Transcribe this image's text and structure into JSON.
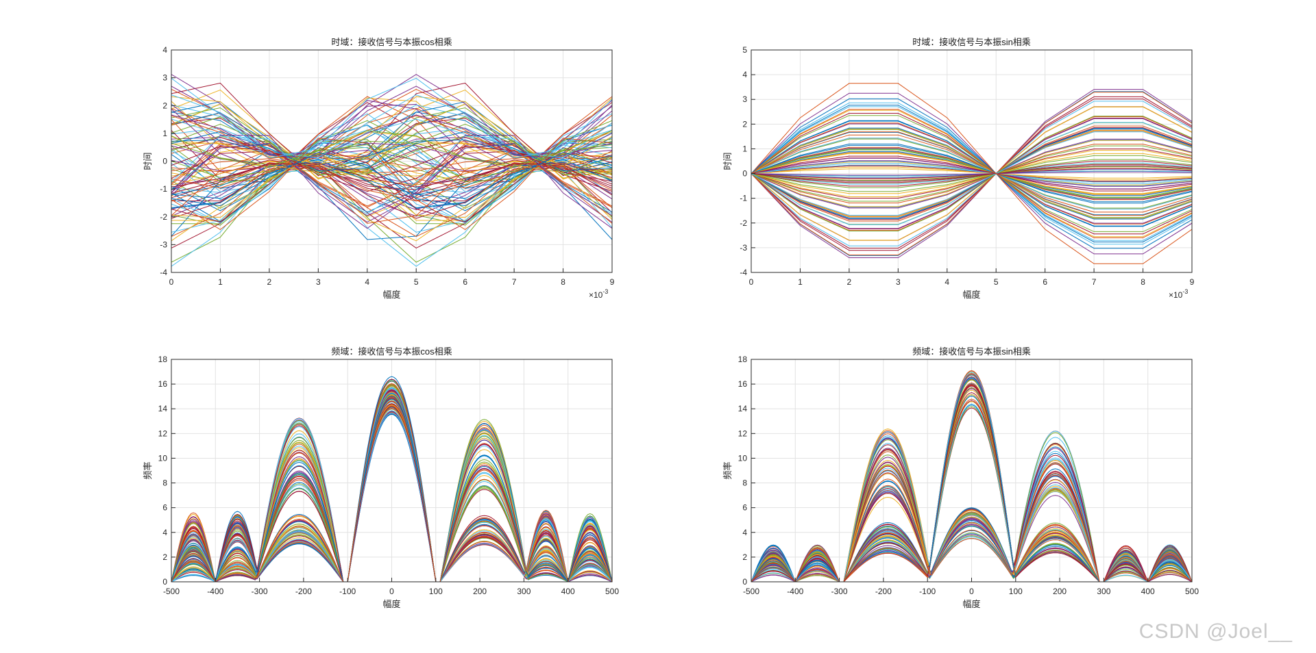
{
  "watermark": "CSDN @Joel__",
  "colors": [
    "#0072BD",
    "#D95319",
    "#EDB120",
    "#7E2F8E",
    "#77AC30",
    "#4DBEEE",
    "#A2142F"
  ],
  "chart_data": [
    {
      "id": "td-cos",
      "type": "line",
      "title": "时域：接收信号与本振cos相乘",
      "xlabel": "幅度",
      "ylabel": "时间",
      "xlim": [
        0,
        9
      ],
      "ylim": [
        -4,
        4
      ],
      "xticks": [
        0,
        1,
        2,
        3,
        4,
        5,
        6,
        7,
        8,
        9
      ],
      "yticks": [
        -4,
        -3,
        -2,
        -1,
        0,
        1,
        2,
        3,
        4
      ],
      "x_exponent": "-3",
      "grid": true,
      "x": [
        0,
        1,
        2,
        3,
        4,
        5,
        6,
        7,
        8,
        9
      ],
      "series_count": 100,
      "amplitude_range": [
        0.5,
        3.8
      ],
      "description": "100 sampled sinusoid traces; zero crossings near x = 2.5 and x = 7.5"
    },
    {
      "id": "td-sin",
      "type": "line",
      "title": "时域：接收信号与本振sin相乘",
      "xlabel": "幅度",
      "ylabel": "时间",
      "xlim": [
        0,
        9
      ],
      "ylim": [
        -4,
        5
      ],
      "xticks": [
        0,
        1,
        2,
        3,
        4,
        5,
        6,
        7,
        8,
        9
      ],
      "yticks": [
        -4,
        -3,
        -2,
        -1,
        0,
        1,
        2,
        3,
        4,
        5
      ],
      "x_exponent": "-3",
      "grid": true,
      "x": [
        0,
        1,
        2,
        3,
        4,
        5,
        6,
        7,
        8,
        9
      ],
      "series_count": 100,
      "amplitude_range": [
        0.5,
        4.0
      ],
      "description": "100 sampled traces all passing through 0 at x = 0 and x = 5"
    },
    {
      "id": "fd-cos",
      "type": "line",
      "title": "频域：接收信号与本振cos相乘",
      "xlabel": "幅度",
      "ylabel": "频率",
      "xlim": [
        -500,
        500
      ],
      "ylim": [
        0,
        18
      ],
      "xticks": [
        -500,
        -400,
        -300,
        -200,
        -100,
        0,
        100,
        200,
        300,
        400,
        500
      ],
      "yticks": [
        0,
        2,
        4,
        6,
        8,
        10,
        12,
        14,
        16,
        18
      ],
      "grid": true,
      "series_count": 100,
      "main_lobe": {
        "center": 0,
        "peak_range": [
          13.5,
          16.7
        ]
      },
      "side_lobes": [
        {
          "center": -210,
          "peak_range": [
            3.0,
            13.3
          ]
        },
        {
          "center": 210,
          "peak_range": [
            3.0,
            13.3
          ]
        },
        {
          "center": -350,
          "peak_range": [
            0.5,
            5.8
          ]
        },
        {
          "center": 350,
          "peak_range": [
            0.5,
            5.8
          ]
        },
        {
          "center": -450,
          "peak_range": [
            0.5,
            5.6
          ]
        },
        {
          "center": 450,
          "peak_range": [
            0.5,
            5.6
          ]
        }
      ],
      "nulls": [
        -300,
        -100,
        100,
        300
      ]
    },
    {
      "id": "fd-sin",
      "type": "line",
      "title": "频域：接收信号与本振sin相乘",
      "xlabel": "幅度",
      "ylabel": "频率",
      "xlim": [
        -500,
        500
      ],
      "ylim": [
        0,
        18
      ],
      "xticks": [
        -500,
        -400,
        -300,
        -200,
        -100,
        0,
        100,
        200,
        300,
        400,
        500
      ],
      "yticks": [
        0,
        2,
        4,
        6,
        8,
        10,
        12,
        14,
        16,
        18
      ],
      "grid": true,
      "series_count": 100,
      "main_lobe": {
        "center": 0,
        "peak_range": [
          3.5,
          17.1
        ]
      },
      "side_lobes": [
        {
          "center": -190,
          "peak_range": [
            2.3,
            12.4
          ]
        },
        {
          "center": 190,
          "peak_range": [
            2.3,
            12.4
          ]
        },
        {
          "center": -350,
          "peak_range": [
            0.5,
            2.6
          ]
        },
        {
          "center": 350,
          "peak_range": [
            0.5,
            2.6
          ]
        },
        {
          "center": -450,
          "peak_range": [
            0.5,
            2.6
          ]
        },
        {
          "center": 450,
          "peak_range": [
            0.5,
            2.6
          ]
        }
      ],
      "nulls": [
        -300,
        -100,
        100,
        300
      ]
    }
  ]
}
